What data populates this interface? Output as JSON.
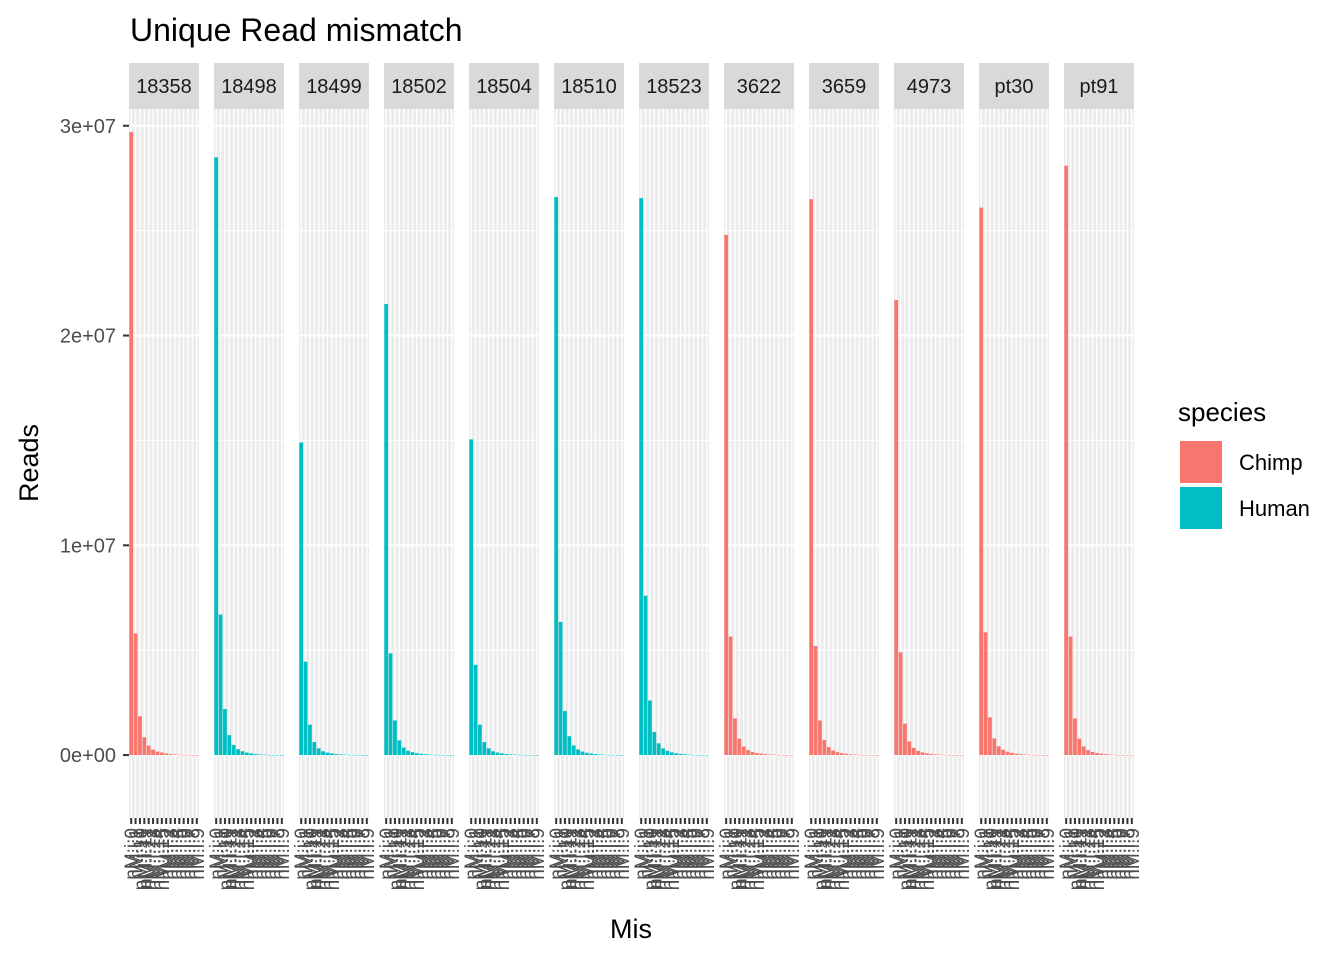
{
  "chart_data": {
    "type": "bar",
    "title": "Unique Read mismatch",
    "xlabel": "Mis",
    "ylabel": "Reads",
    "ylim": [
      -3000000,
      30800000
    ],
    "y_ticks": [
      {
        "value": 0,
        "label": "0e+00"
      },
      {
        "value": 10000000,
        "label": "1e+07"
      },
      {
        "value": 20000000,
        "label": "2e+07"
      },
      {
        "value": 30000000,
        "label": "3e+07"
      }
    ],
    "grid": true,
    "legend": {
      "title": "species",
      "placement": "right",
      "entries": [
        {
          "name": "Chimp",
          "color": "#F8766D"
        },
        {
          "name": "Human",
          "color": "#00BFC4"
        }
      ]
    },
    "categories": [
      "0",
      "1",
      "2",
      "3",
      "4",
      "5",
      "6",
      "7",
      "8",
      "9",
      "10",
      "11",
      "12",
      "13",
      "14",
      "15"
    ],
    "panels": [
      {
        "label": "18358",
        "species": "Chimp",
        "values": [
          29700000,
          5800000,
          1850000,
          850000,
          450000,
          260000,
          170000,
          120000,
          80000,
          50000,
          30000,
          20000,
          10000,
          8000,
          5000,
          3000
        ]
      },
      {
        "label": "18498",
        "species": "Human",
        "values": [
          28500000,
          6700000,
          2200000,
          950000,
          480000,
          280000,
          180000,
          120000,
          80000,
          50000,
          30000,
          20000,
          10000,
          8000,
          5000,
          3000
        ]
      },
      {
        "label": "18499",
        "species": "Human",
        "values": [
          14900000,
          4450000,
          1450000,
          620000,
          320000,
          180000,
          120000,
          80000,
          50000,
          35000,
          25000,
          15000,
          10000,
          6000,
          4000,
          2000
        ]
      },
      {
        "label": "18502",
        "species": "Human",
        "values": [
          21500000,
          4850000,
          1650000,
          700000,
          360000,
          210000,
          140000,
          90000,
          60000,
          40000,
          25000,
          15000,
          10000,
          6000,
          4000,
          2000
        ]
      },
      {
        "label": "18504",
        "species": "Human",
        "values": [
          15050000,
          4300000,
          1450000,
          620000,
          320000,
          180000,
          120000,
          80000,
          50000,
          35000,
          25000,
          15000,
          10000,
          6000,
          4000,
          2000
        ]
      },
      {
        "label": "18510",
        "species": "Human",
        "values": [
          26600000,
          6350000,
          2100000,
          900000,
          460000,
          270000,
          170000,
          110000,
          75000,
          50000,
          30000,
          20000,
          10000,
          8000,
          5000,
          3000
        ]
      },
      {
        "label": "18523",
        "species": "Human",
        "values": [
          26550000,
          7600000,
          2600000,
          1100000,
          560000,
          320000,
          200000,
          130000,
          85000,
          55000,
          35000,
          20000,
          12000,
          8000,
          5000,
          3000
        ]
      },
      {
        "label": "3622",
        "species": "Chimp",
        "values": [
          24800000,
          5650000,
          1750000,
          780000,
          410000,
          240000,
          150000,
          100000,
          70000,
          45000,
          30000,
          20000,
          10000,
          6000,
          4000,
          2000
        ]
      },
      {
        "label": "3659",
        "species": "Chimp",
        "values": [
          26500000,
          5200000,
          1650000,
          720000,
          380000,
          220000,
          140000,
          95000,
          65000,
          40000,
          25000,
          15000,
          10000,
          6000,
          4000,
          2000
        ]
      },
      {
        "label": "4973",
        "species": "Chimp",
        "values": [
          21700000,
          4900000,
          1500000,
          650000,
          340000,
          200000,
          130000,
          85000,
          55000,
          35000,
          25000,
          15000,
          10000,
          6000,
          4000,
          2000
        ]
      },
      {
        "label": "pt30",
        "species": "Chimp",
        "values": [
          26100000,
          5850000,
          1800000,
          800000,
          420000,
          250000,
          160000,
          105000,
          70000,
          45000,
          30000,
          20000,
          10000,
          6000,
          4000,
          2000
        ]
      },
      {
        "label": "pt91",
        "species": "Chimp",
        "values": [
          28100000,
          5650000,
          1750000,
          780000,
          410000,
          240000,
          150000,
          100000,
          70000,
          45000,
          30000,
          20000,
          10000,
          6000,
          4000,
          2000
        ]
      }
    ],
    "x_tick_labels_legible": [
      "nM:i:0",
      "nM:i:1",
      "nM:i:10"
    ]
  }
}
